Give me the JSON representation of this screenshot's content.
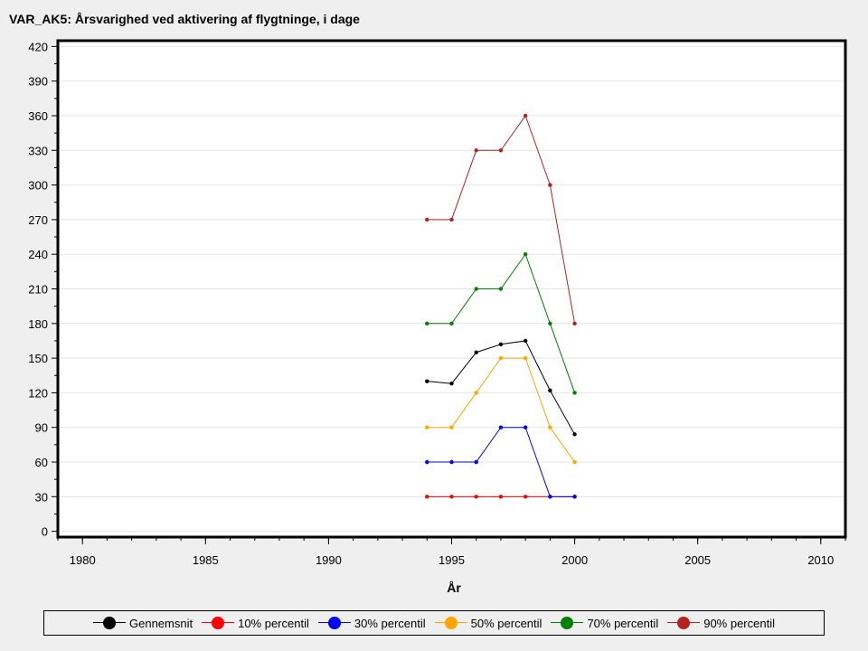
{
  "chart_data": {
    "type": "line",
    "title": "VAR_AK5: Årsvarighed ved aktivering af flygtninge, i dage",
    "xlabel": "År",
    "ylabel": "",
    "xlim": [
      1979,
      2011
    ],
    "ylim": [
      -5,
      425
    ],
    "xticks": [
      1980,
      1985,
      1990,
      1995,
      2000,
      2005,
      2010
    ],
    "yticks": [
      0,
      30,
      60,
      90,
      120,
      150,
      180,
      210,
      240,
      270,
      300,
      330,
      360,
      390,
      420
    ],
    "grid": true,
    "legend_position": "bottom",
    "x": [
      1994,
      1995,
      1996,
      1997,
      1998,
      1999,
      2000
    ],
    "series": [
      {
        "name": "Gennemsnit",
        "color": "#000000",
        "values": [
          130,
          128,
          155,
          162,
          165,
          122,
          84
        ]
      },
      {
        "name": "10% percentil",
        "color": "#ff0000",
        "values": [
          30,
          30,
          30,
          30,
          30,
          30,
          30
        ]
      },
      {
        "name": "30% percentil",
        "color": "#0000ff",
        "values": [
          60,
          60,
          60,
          90,
          90,
          30,
          30
        ]
      },
      {
        "name": "50% percentil",
        "color": "#ffa500",
        "values": [
          90,
          90,
          120,
          150,
          150,
          90,
          60
        ]
      },
      {
        "name": "70% percentil",
        "color": "#008000",
        "values": [
          180,
          180,
          210,
          210,
          240,
          180,
          120
        ]
      },
      {
        "name": "90% percentil",
        "color": "#b22222",
        "values": [
          270,
          270,
          330,
          330,
          360,
          300,
          180
        ]
      }
    ]
  }
}
